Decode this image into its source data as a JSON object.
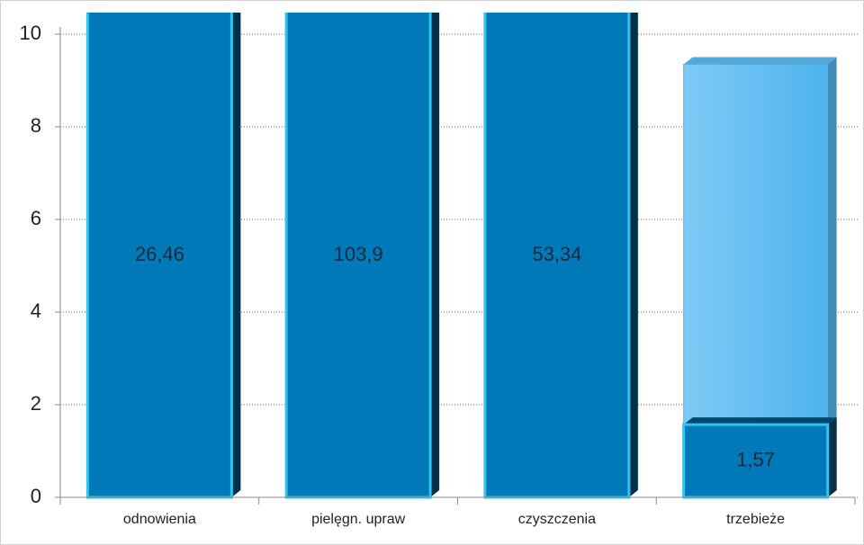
{
  "chart_data": {
    "type": "bar",
    "categories": [
      "odnowienia",
      "pielęgn. upraw",
      "czyszczenia",
      "trzebieże"
    ],
    "series": [
      {
        "color": "#5bbcf2",
        "values": [
          null,
          null,
          null,
          9.35
        ]
      },
      {
        "color": "#0079b8",
        "values": [
          26.46,
          103.9,
          53.34,
          1.57
        ],
        "value_labels": [
          "26,46",
          "103,9",
          "53,34",
          "1,57"
        ]
      }
    ],
    "ylim": [
      0,
      10
    ],
    "yticks": [
      0,
      2,
      4,
      6,
      8,
      10
    ],
    "grid": true
  }
}
